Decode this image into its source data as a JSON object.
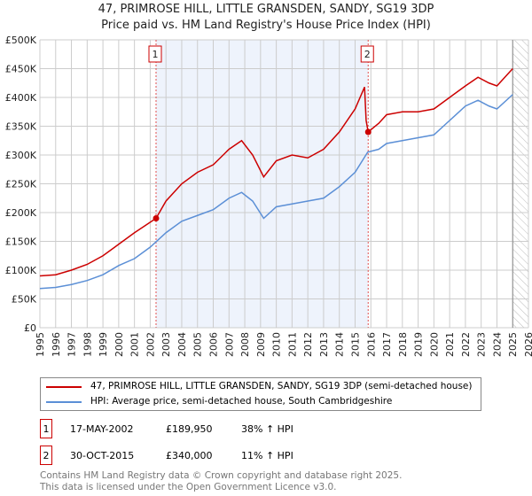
{
  "chart_data": {
    "type": "line",
    "title": "47, PRIMROSE HILL, LITTLE GRANSDEN, SANDY, SG19 3DP",
    "subtitle": "Price paid vs. HM Land Registry's House Price Index (HPI)",
    "xlim": [
      1995,
      2026
    ],
    "ylim": [
      0,
      500000
    ],
    "x_ticks": [
      "1995",
      "1996",
      "1997",
      "1998",
      "1999",
      "2000",
      "2001",
      "2002",
      "2003",
      "2004",
      "2005",
      "2006",
      "2007",
      "2008",
      "2009",
      "2010",
      "2011",
      "2012",
      "2013",
      "2014",
      "2015",
      "2016",
      "2017",
      "2018",
      "2019",
      "2020",
      "2021",
      "2022",
      "2023",
      "2024",
      "2025",
      "2026"
    ],
    "y_ticks": [
      {
        "v": 0,
        "label": "£0"
      },
      {
        "v": 50000,
        "label": "£50K"
      },
      {
        "v": 100000,
        "label": "£100K"
      },
      {
        "v": 150000,
        "label": "£150K"
      },
      {
        "v": 200000,
        "label": "£200K"
      },
      {
        "v": 250000,
        "label": "£250K"
      },
      {
        "v": 300000,
        "label": "£300K"
      },
      {
        "v": 350000,
        "label": "£350K"
      },
      {
        "v": 400000,
        "label": "£400K"
      },
      {
        "v": 450000,
        "label": "£450K"
      },
      {
        "v": 500000,
        "label": "£500K"
      }
    ],
    "grid": true,
    "shaded_range": [
      2002.37,
      2015.83
    ],
    "hatched_from": 2025.0,
    "series": [
      {
        "name": "47, PRIMROSE HILL, LITTLE GRANSDEN, SANDY, SG19 3DP (semi-detached house)",
        "color": "#cc0000",
        "x": [
          1995,
          1996,
          1997,
          1998,
          1999,
          2000,
          2001,
          2002.37,
          2003,
          2004,
          2005,
          2006,
          2007,
          2007.8,
          2008.5,
          2009.2,
          2010,
          2011,
          2012,
          2013,
          2014,
          2015,
          2015.6,
          2015.7,
          2015.83,
          2016.5,
          2017,
          2018,
          2019,
          2020,
          2021,
          2022,
          2022.8,
          2023.5,
          2024,
          2025
        ],
        "y": [
          90000,
          92000,
          100000,
          110000,
          125000,
          145000,
          165000,
          189950,
          220000,
          250000,
          270000,
          283000,
          310000,
          325000,
          300000,
          262000,
          290000,
          300000,
          295000,
          310000,
          340000,
          380000,
          418000,
          360000,
          340000,
          355000,
          370000,
          375000,
          375000,
          380000,
          400000,
          420000,
          435000,
          425000,
          420000,
          450000
        ]
      },
      {
        "name": "HPI: Average price, semi-detached house, South Cambridgeshire",
        "color": "#5b8fd6",
        "x": [
          1995,
          1996,
          1997,
          1998,
          1999,
          2000,
          2001,
          2002,
          2003,
          2004,
          2005,
          2006,
          2007,
          2007.8,
          2008.5,
          2009.2,
          2010,
          2011,
          2012,
          2013,
          2014,
          2015,
          2015.8,
          2016.5,
          2017,
          2018,
          2019,
          2020,
          2021,
          2022,
          2022.8,
          2023.5,
          2024,
          2025
        ],
        "y": [
          68000,
          70000,
          75000,
          82000,
          92000,
          108000,
          120000,
          140000,
          165000,
          185000,
          195000,
          205000,
          225000,
          235000,
          220000,
          190000,
          210000,
          215000,
          220000,
          225000,
          245000,
          270000,
          305000,
          310000,
          320000,
          325000,
          330000,
          335000,
          360000,
          385000,
          395000,
          385000,
          380000,
          405000
        ]
      }
    ],
    "sales": [
      {
        "id": "1",
        "x": 2002.37,
        "y": 189950
      },
      {
        "id": "2",
        "x": 2015.83,
        "y": 340000
      }
    ]
  },
  "legend": {
    "items": [
      "47, PRIMROSE HILL, LITTLE GRANSDEN, SANDY, SG19 3DP (semi-detached house)",
      "HPI: Average price, semi-detached house, South Cambridgeshire"
    ]
  },
  "table": [
    {
      "id": "1",
      "date": "17-MAY-2002",
      "price": "£189,950",
      "hpi": "38% ↑ HPI"
    },
    {
      "id": "2",
      "date": "30-OCT-2015",
      "price": "£340,000",
      "hpi": "11% ↑ HPI"
    }
  ],
  "footer": {
    "line1": "Contains HM Land Registry data © Crown copyright and database right 2025.",
    "line2": "This data is licensed under the Open Government Licence v3.0."
  }
}
